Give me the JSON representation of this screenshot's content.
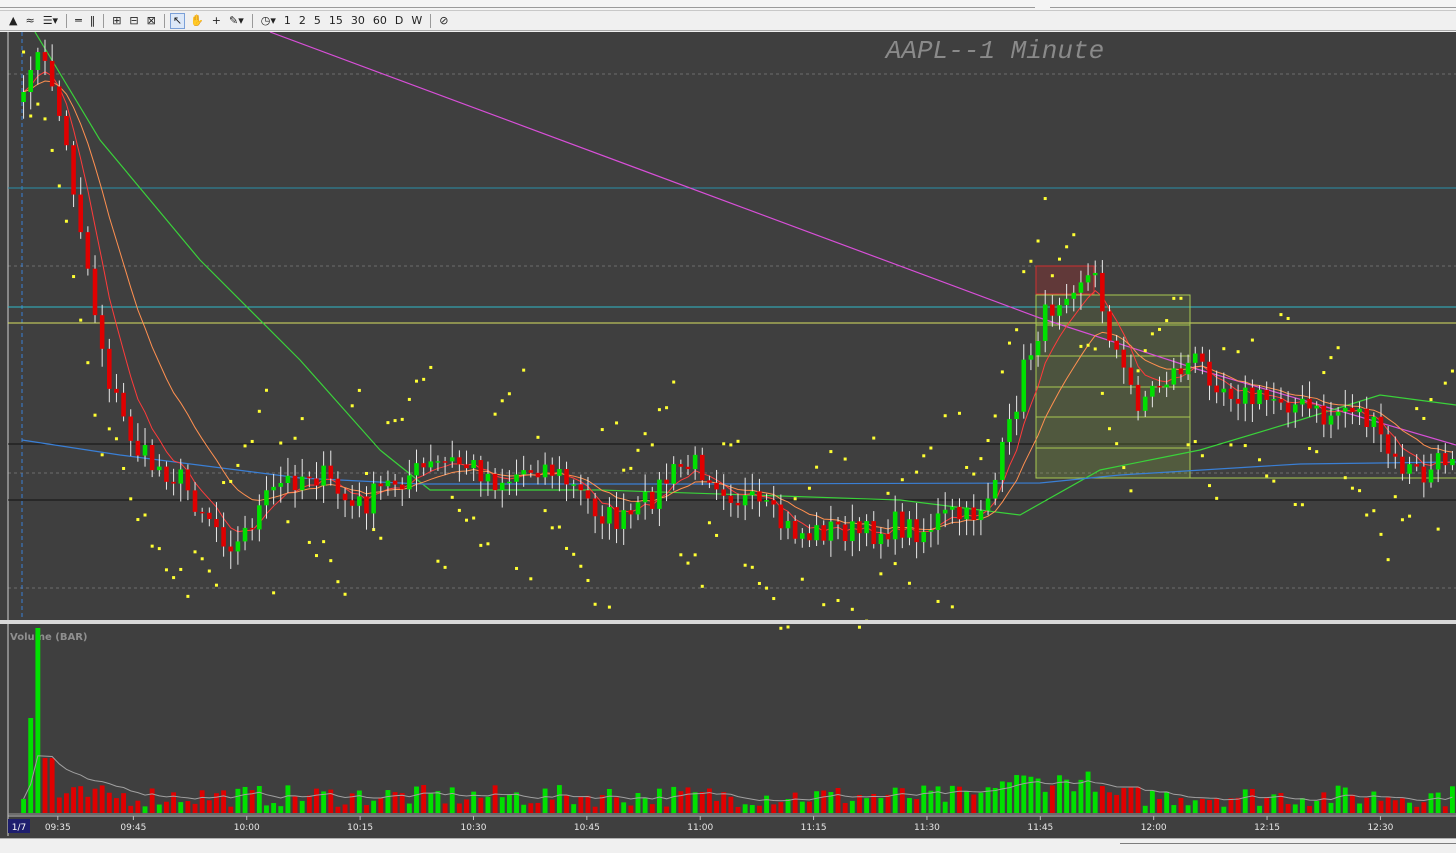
{
  "toolbar": {
    "timeframes": [
      "1",
      "2",
      "5",
      "15",
      "30",
      "60",
      "D",
      "W"
    ]
  },
  "colors": {
    "background": "#3f3f3f",
    "bull_candle": "#00e000",
    "bear_candle": "#e00000",
    "wick": "#e8e8e8",
    "psar": "#ffff33",
    "ema_fast": "#ff3b3b",
    "ema_mid": "#ff9050",
    "ema_slow": "#3ad23a",
    "sma_long": "#d84fd8",
    "vwap": "#3a7fd5",
    "hline_cyan": "#2fb8c8",
    "hline_yellow": "#d8e060",
    "volume_avg": "#a0a0a0"
  },
  "chart_data": {
    "type": "candlestick",
    "title": "AAPL--1 Minute",
    "volume_title": "Volume (BAR)",
    "date_label": "1/7",
    "x_labels": [
      "09:35",
      "09:45",
      "10:00",
      "10:15",
      "10:30",
      "10:45",
      "11:00",
      "11:15",
      "11:30",
      "11:45",
      "12:00",
      "12:15",
      "12:30"
    ],
    "session_start": "09:30",
    "session_end": "12:40",
    "legend": "none",
    "grid": "horizontal dashed",
    "price_anchors": [
      [
        0,
        62
      ],
      [
        2,
        58
      ],
      [
        4,
        80
      ],
      [
        6,
        150
      ],
      [
        8,
        225
      ],
      [
        10,
        310
      ],
      [
        12,
        380
      ],
      [
        14,
        420
      ],
      [
        16,
        450
      ],
      [
        18,
        465
      ],
      [
        20,
        470
      ],
      [
        22,
        480
      ],
      [
        24,
        500
      ],
      [
        26,
        515
      ],
      [
        28,
        535
      ],
      [
        30,
        545
      ],
      [
        32,
        520
      ],
      [
        34,
        500
      ],
      [
        36,
        485
      ],
      [
        38,
        478
      ],
      [
        40,
        472
      ],
      [
        42,
        478
      ],
      [
        44,
        492
      ],
      [
        46,
        508
      ],
      [
        48,
        502
      ],
      [
        50,
        490
      ],
      [
        52,
        480
      ],
      [
        54,
        475
      ],
      [
        56,
        470
      ],
      [
        58,
        465
      ],
      [
        60,
        462
      ],
      [
        62,
        465
      ],
      [
        64,
        470
      ],
      [
        66,
        480
      ],
      [
        68,
        478
      ],
      [
        70,
        470
      ],
      [
        72,
        465
      ],
      [
        74,
        470
      ],
      [
        76,
        482
      ],
      [
        78,
        495
      ],
      [
        80,
        508
      ],
      [
        82,
        518
      ],
      [
        84,
        522
      ],
      [
        86,
        512
      ],
      [
        88,
        495
      ],
      [
        90,
        480
      ],
      [
        92,
        468
      ],
      [
        94,
        465
      ],
      [
        96,
        472
      ],
      [
        98,
        485
      ],
      [
        100,
        498
      ],
      [
        102,
        505
      ],
      [
        104,
        512
      ],
      [
        106,
        525
      ],
      [
        108,
        532
      ],
      [
        110,
        535
      ],
      [
        112,
        530
      ],
      [
        114,
        528
      ],
      [
        116,
        532
      ],
      [
        118,
        535
      ],
      [
        120,
        530
      ],
      [
        122,
        525
      ],
      [
        124,
        528
      ],
      [
        126,
        530
      ],
      [
        128,
        520
      ],
      [
        130,
        515
      ],
      [
        132,
        520
      ],
      [
        134,
        505
      ],
      [
        136,
        480
      ],
      [
        138,
        430
      ],
      [
        140,
        370
      ],
      [
        142,
        330
      ],
      [
        144,
        305
      ],
      [
        146,
        285
      ],
      [
        148,
        275
      ],
      [
        150,
        280
      ],
      [
        152,
        330
      ],
      [
        154,
        375
      ],
      [
        156,
        400
      ],
      [
        158,
        390
      ],
      [
        160,
        378
      ],
      [
        162,
        368
      ],
      [
        164,
        362
      ],
      [
        166,
        372
      ],
      [
        168,
        385
      ],
      [
        170,
        392
      ],
      [
        172,
        400
      ],
      [
        174,
        400
      ],
      [
        176,
        395
      ],
      [
        178,
        405
      ],
      [
        180,
        410
      ],
      [
        182,
        420
      ],
      [
        184,
        410
      ],
      [
        186,
        405
      ],
      [
        188,
        420
      ],
      [
        190,
        440
      ],
      [
        192,
        465
      ],
      [
        194,
        470
      ],
      [
        196,
        478
      ],
      [
        198,
        465
      ],
      [
        200,
        450
      ]
    ],
    "overlay_lines": [
      {
        "name": "",
        "color": "#d84fd8",
        "points": [
          [
            270,
            32
          ],
          [
            1040,
            318
          ],
          [
            1200,
            370
          ],
          [
            1456,
            445
          ]
        ]
      },
      {
        "name": "",
        "color": "#3ad23a",
        "points": [
          [
            35,
            32
          ],
          [
            100,
            140
          ],
          [
            200,
            260
          ],
          [
            300,
            360
          ],
          [
            380,
            450
          ],
          [
            430,
            490
          ],
          [
            600,
            490
          ],
          [
            900,
            500
          ],
          [
            1020,
            515
          ],
          [
            1100,
            470
          ],
          [
            1200,
            450
          ],
          [
            1300,
            420
          ],
          [
            1380,
            395
          ],
          [
            1456,
            405
          ]
        ]
      },
      {
        "name": "",
        "color": "#3a7fd5",
        "points": [
          [
            22,
            440
          ],
          [
            120,
            455
          ],
          [
            300,
            478
          ],
          [
            420,
            484
          ],
          [
            700,
            484
          ],
          [
            1040,
            483
          ],
          [
            1120,
            475
          ],
          [
            1300,
            464
          ],
          [
            1456,
            462
          ]
        ]
      }
    ],
    "horizontal_lines": [
      {
        "y": 188,
        "color": "#2a8fa8"
      },
      {
        "y": 307,
        "color": "#2fb8c8"
      },
      {
        "y": 323,
        "color": "#d8e060"
      },
      {
        "y": 444,
        "color": "#111111"
      },
      {
        "y": 500,
        "color": "#111111"
      }
    ],
    "fib_levels": [
      295,
      325,
      356,
      387,
      417,
      448,
      478
    ],
    "volume_spike_index": 2
  }
}
